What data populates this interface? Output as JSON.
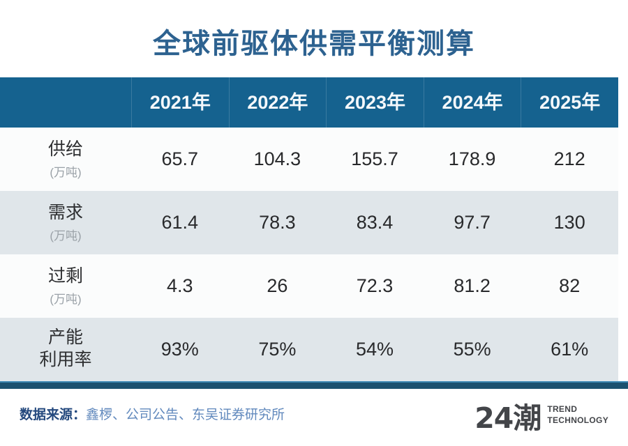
{
  "title": "全球前驱体供需平衡测算",
  "chart_data": {
    "type": "table",
    "title": "全球前驱体供需平衡测算",
    "columns": [
      "",
      "2021年",
      "2022年",
      "2023年",
      "2024年",
      "2025年"
    ],
    "rows": [
      [
        "供给(万吨)",
        65.7,
        104.3,
        155.7,
        178.9,
        212
      ],
      [
        "需求(万吨)",
        61.4,
        78.3,
        83.4,
        97.7,
        130
      ],
      [
        "过剩(万吨)",
        4.3,
        26,
        72.3,
        81.2,
        82
      ],
      [
        "产能利用率",
        "93%",
        "75%",
        "54%",
        "55%",
        "61%"
      ]
    ]
  },
  "table": {
    "years": [
      "2021年",
      "2022年",
      "2023年",
      "2024年",
      "2025年"
    ],
    "rows": [
      {
        "label": "供给",
        "label_line2": "",
        "unit": "(万吨)",
        "values": [
          "65.7",
          "104.3",
          "155.7",
          "178.9",
          "212"
        ]
      },
      {
        "label": "需求",
        "label_line2": "",
        "unit": "(万吨)",
        "values": [
          "61.4",
          "78.3",
          "83.4",
          "97.7",
          "130"
        ]
      },
      {
        "label": "过剩",
        "label_line2": "",
        "unit": "(万吨)",
        "values": [
          "4.3",
          "26",
          "72.3",
          "81.2",
          "82"
        ]
      },
      {
        "label": "产能",
        "label_line2": "利用率",
        "unit": "",
        "values": [
          "93%",
          "75%",
          "54%",
          "55%",
          "61%"
        ]
      }
    ]
  },
  "footer": {
    "source_label": "数据来源：",
    "source_text": "鑫椤、公司公告、东吴证券研究所",
    "logo_text": "24潮",
    "logo_sub1": "TREND",
    "logo_sub2": "TECHNOLOGY"
  },
  "colors": {
    "title": "#2d6290",
    "header_bg": "#15628f",
    "row_alt_bg": "#e0e6ea",
    "accent_bar": "#1c516f",
    "source_label": "#24497e",
    "source_text": "#6189bd"
  }
}
